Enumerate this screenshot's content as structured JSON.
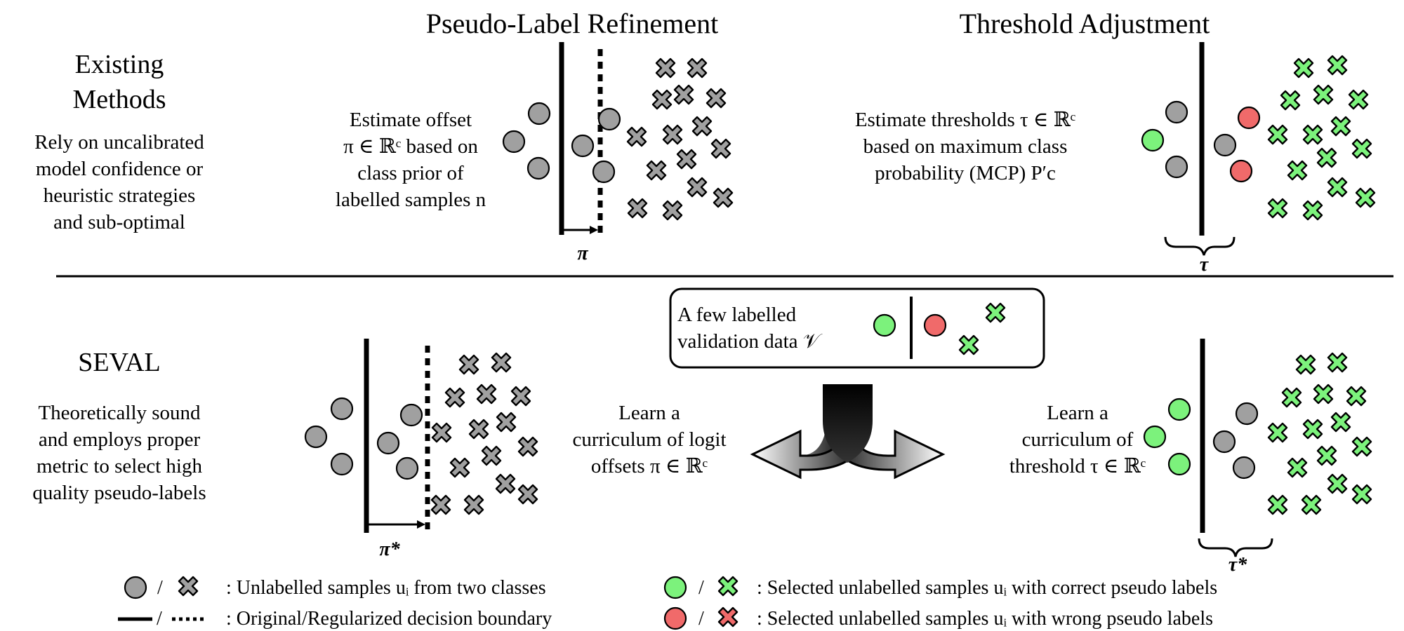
{
  "headers": {
    "pseudo_label_refinement": "Pseudo-Label Refinement",
    "threshold_adjustment": "Threshold Adjustment"
  },
  "existing": {
    "title_line1": "Existing",
    "title_line2": "Methods",
    "desc": [
      "Rely on uncalibrated",
      "model confidence or",
      "heuristic strategies",
      "and sub-optimal"
    ],
    "offset_text": [
      "Estimate offset",
      "π ∈ ℝᶜ based on",
      "class prior of",
      "labelled samples n"
    ],
    "pi_label": "π",
    "threshold_text": [
      "Estimate thresholds τ ∈ ℝᶜ",
      "based on maximum class",
      "probability (MCP) P′c"
    ],
    "tau_label": "τ"
  },
  "seval": {
    "title": "SEVAL",
    "desc": [
      "Theoretically sound",
      "and employs proper",
      "metric to select high",
      "quality pseudo-labels"
    ],
    "validation_text": [
      "A few labelled",
      "validation data 𝒱"
    ],
    "logit_text": [
      "Learn a",
      "curriculum of logit",
      "offsets π ∈ ℝᶜ"
    ],
    "threshold_text": [
      "Learn a",
      "curriculum of",
      "threshold τ ∈ ℝᶜ"
    ],
    "pi_star_label": "π*",
    "tau_star_label": "τ*"
  },
  "legend": {
    "sep": "/",
    "unlabelled": ": Unlabelled samples uᵢ from two classes",
    "boundary": ": Original/Regularized decision boundary",
    "correct": ": Selected unlabelled samples uᵢ with correct pseudo labels",
    "wrong": ": Selected unlabelled samples uᵢ with wrong pseudo labels"
  },
  "colors": {
    "gray": "#a0a0a0",
    "green": "#7cf27c",
    "red": "#f06a6a",
    "outline": "#000000"
  }
}
